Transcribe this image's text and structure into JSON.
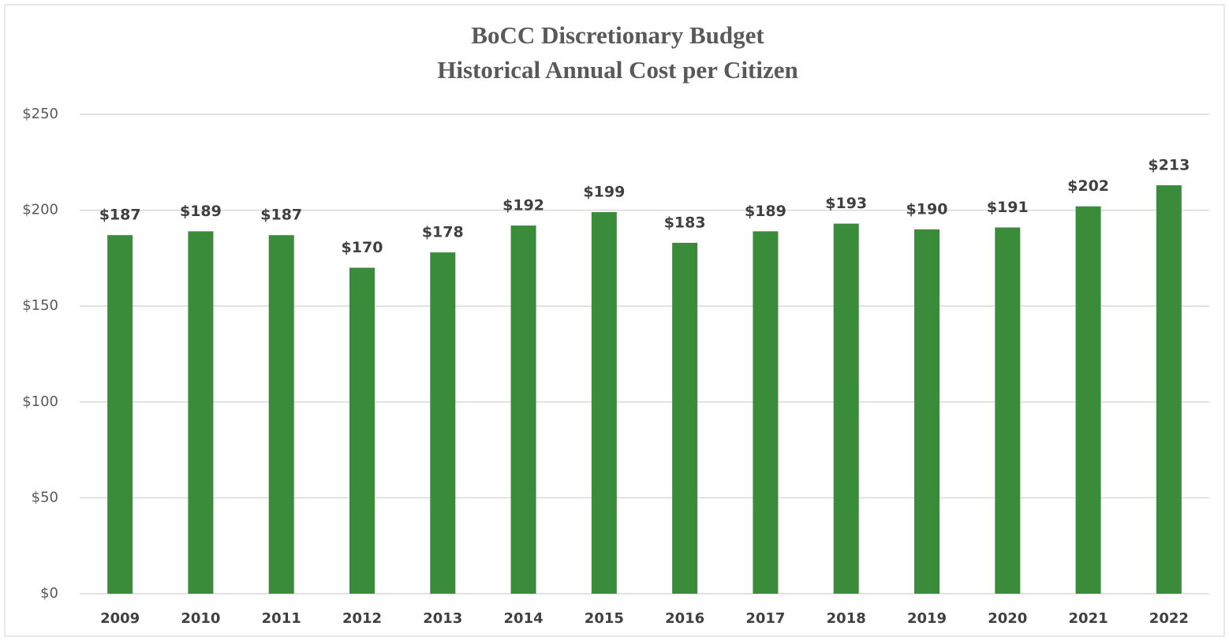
{
  "chart_data": {
    "type": "bar",
    "title": "BoCC Discretionary  Budget",
    "subtitle": "Historical Annual Cost per Citizen",
    "categories": [
      "2009",
      "2010",
      "2011",
      "2012",
      "2013",
      "2014",
      "2015",
      "2016",
      "2017",
      "2018",
      "2019",
      "2020",
      "2021",
      "2022"
    ],
    "values": [
      187,
      189,
      187,
      170,
      178,
      192,
      199,
      183,
      189,
      193,
      190,
      191,
      202,
      213
    ],
    "value_labels": [
      "$187",
      "$189",
      "$187",
      "$170",
      "$178",
      "$192",
      "$199",
      "$183",
      "$189",
      "$193",
      "$190",
      "$191",
      "$202",
      "$213"
    ],
    "color": "#3a8c3a",
    "ylim": [
      0,
      250
    ],
    "yticks": [
      {
        "value": 0,
        "label": "$0"
      },
      {
        "value": 50,
        "label": "$50"
      },
      {
        "value": 100,
        "label": "$100"
      },
      {
        "value": 150,
        "label": "$150"
      },
      {
        "value": 200,
        "label": "$200"
      },
      {
        "value": 250,
        "label": "$250"
      }
    ],
    "grid": true
  }
}
